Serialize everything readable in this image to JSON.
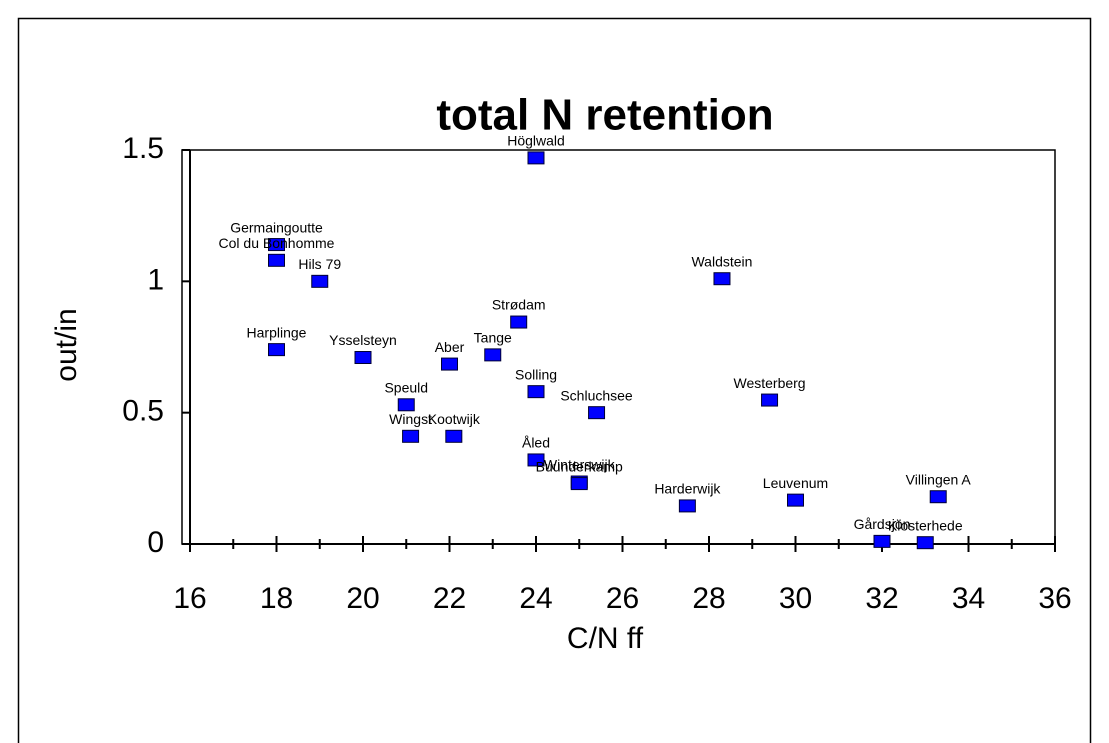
{
  "chart_data": {
    "type": "scatter",
    "title": "total N retention",
    "x_label": "C/N ff",
    "y_label": "out/in",
    "color": "#0000ff",
    "point_labels": [
      "Höglwald",
      "Germaingoutte",
      "Col du Bonhomme",
      "Hils 79",
      "Waldstein",
      "Strødam",
      "Harplinge",
      "Ysselsteyn",
      "Aber",
      "Tange",
      "Solling",
      "Speuld",
      "Schluchsee",
      "Westerberg",
      "Wingst",
      "Kootwijk",
      "Åled",
      "Winterswijk",
      "Buunderkamp",
      "Harderwijk",
      "Leuvenum",
      "Villingen A",
      "Gårdsjön",
      "Klosterhede"
    ],
    "x": [
      24.0,
      18.0,
      18.0,
      19.0,
      28.3,
      23.6,
      18.0,
      20.0,
      22.0,
      23.0,
      24.0,
      21.0,
      25.4,
      29.4,
      21.1,
      22.1,
      24.0,
      25.0,
      25.0,
      27.5,
      30.0,
      33.3,
      32.0,
      33.0
    ],
    "values": [
      1.47,
      1.14,
      1.08,
      1.0,
      1.01,
      0.845,
      0.74,
      0.71,
      0.685,
      0.72,
      0.58,
      0.53,
      0.5,
      0.548,
      0.41,
      0.41,
      0.32,
      0.236,
      0.23,
      0.145,
      0.167,
      0.18,
      0.01,
      0.005
    ],
    "xlim": [
      16,
      36
    ],
    "xticks": [
      16,
      18,
      20,
      22,
      24,
      26,
      28,
      30,
      32,
      34,
      36
    ],
    "xminorticks": [
      17,
      19,
      21,
      23,
      25,
      27,
      29,
      31,
      33,
      35
    ],
    "ylim": [
      0,
      1.5
    ],
    "yticks": [
      0,
      0.5,
      1,
      1.5
    ]
  }
}
